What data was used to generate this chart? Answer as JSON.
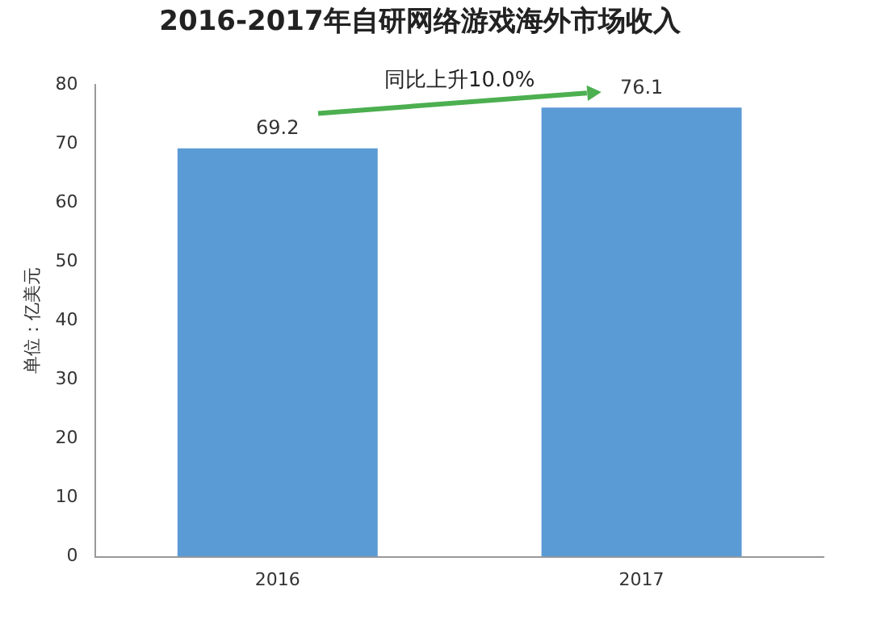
{
  "chart_data": {
    "type": "bar",
    "title": "2016-2017年自研网络游戏海外市场收入",
    "ylabel": "单位：亿美元",
    "categories": [
      "2016",
      "2017"
    ],
    "values": [
      69.2,
      76.1
    ],
    "color": "#5b9bd5",
    "ylim": [
      0,
      80
    ],
    "yticks": [
      0,
      10,
      20,
      30,
      40,
      50,
      60,
      70,
      80
    ],
    "grid": false,
    "data_labels": true,
    "annotations": [
      "同比上升10.0%"
    ]
  }
}
